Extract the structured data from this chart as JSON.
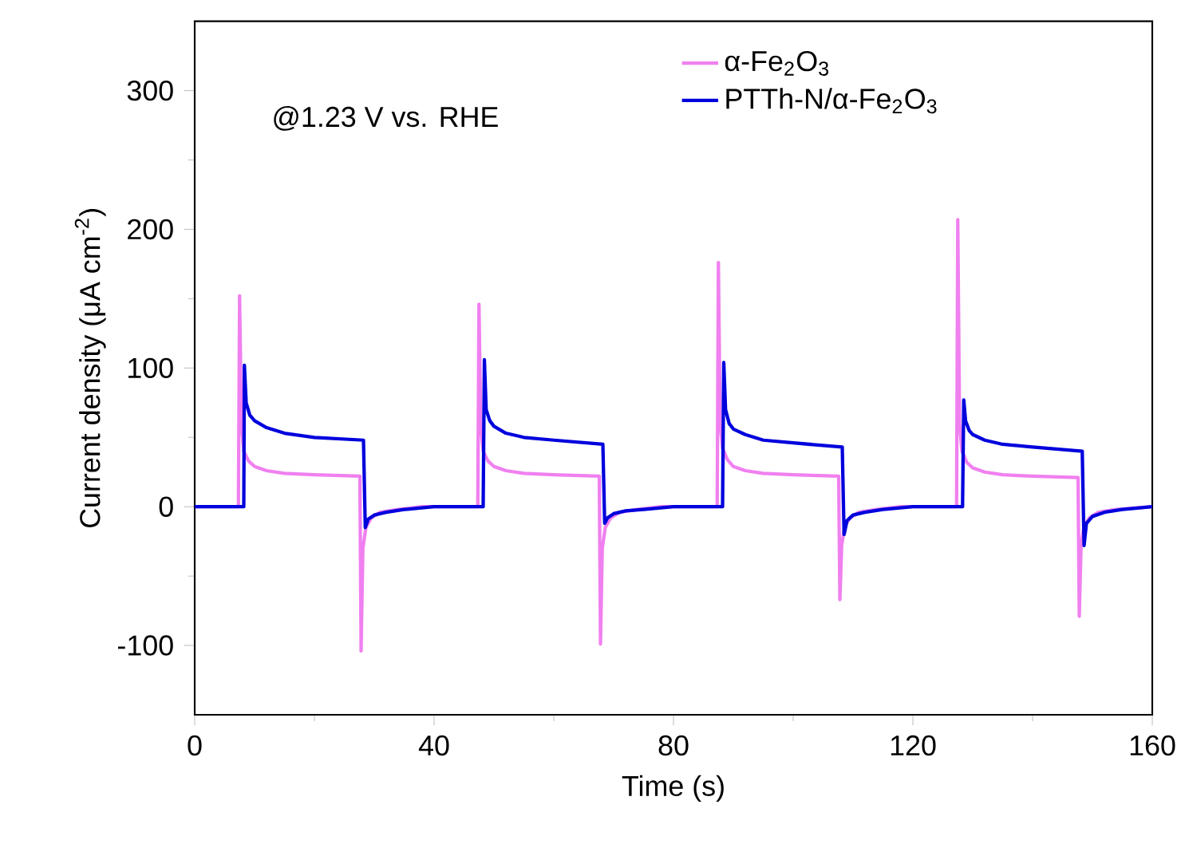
{
  "chart_data": {
    "type": "line",
    "xlabel": "Time (s)",
    "ylabel": "Current density (μA cm$^{-2}$)",
    "annotations": [
      "@1.23 V vs. RHE"
    ],
    "xlim": [
      0,
      160
    ],
    "ylim": [
      -150,
      350
    ],
    "xticks": [
      0,
      40,
      80,
      120,
      160
    ],
    "yticks": [
      -100,
      0,
      100,
      200,
      300
    ],
    "legend": "top right",
    "marker": "none",
    "line_style": "solid",
    "grid": false,
    "series": [
      {
        "name": "α-Fe$_{2}$O$_{3}$",
        "color": "#f080f0",
        "x": [
          0,
          7.3,
          7.5,
          7.8,
          8.2,
          9,
          10,
          12,
          15,
          20,
          27.6,
          27.8,
          28.1,
          28.6,
          29.5,
          31,
          34,
          38,
          47.3,
          47.5,
          47.8,
          48.2,
          49,
          50,
          52,
          55,
          60,
          67.6,
          67.8,
          68.1,
          68.6,
          69.5,
          71,
          74,
          78,
          87.3,
          87.5,
          87.8,
          88.2,
          89,
          90,
          92,
          95,
          100,
          107.6,
          107.8,
          108.1,
          108.6,
          109.5,
          111,
          114,
          118,
          127.3,
          127.5,
          127.8,
          128.2,
          129,
          130,
          132,
          135,
          140,
          147.6,
          147.8,
          148.1,
          148.6,
          149.5,
          151,
          154,
          160
        ],
        "values": [
          0,
          0,
          152,
          60,
          40,
          33,
          29,
          26,
          24,
          23,
          22,
          -104,
          -30,
          -15,
          -8,
          -4,
          -2,
          0,
          0,
          146,
          58,
          40,
          33,
          29,
          26,
          24,
          23,
          22,
          -99,
          -30,
          -15,
          -8,
          -4,
          -2,
          0,
          0,
          176,
          60,
          42,
          34,
          29,
          26,
          24,
          23,
          22,
          -67,
          -28,
          -14,
          -8,
          -4,
          -2,
          0,
          0,
          207,
          60,
          40,
          32,
          28,
          25,
          23,
          22,
          21,
          -79,
          -28,
          -14,
          -8,
          -4,
          -2,
          0
        ]
      },
      {
        "name": "PTTh-N/α-Fe$_{2}$O$_{3}$",
        "color": "#0000dd",
        "x": [
          0,
          8.2,
          8.3,
          8.6,
          9.2,
          10,
          12,
          15,
          20,
          28.2,
          28.5,
          29,
          30,
          32,
          35,
          40,
          48.2,
          48.4,
          48.7,
          49.3,
          50,
          52,
          55,
          60,
          68.2,
          68.5,
          69,
          70,
          72,
          75,
          80,
          88.2,
          88.4,
          88.7,
          89.3,
          90,
          92,
          95,
          100,
          108.2,
          108.5,
          109,
          110,
          112,
          115,
          120,
          128.3,
          128.5,
          128.8,
          129.4,
          130,
          132,
          135,
          140,
          148.3,
          148.6,
          149,
          150,
          152,
          155,
          160
        ],
        "values": [
          0,
          0,
          102,
          75,
          66,
          62,
          57,
          53,
          50,
          48,
          -15,
          -9,
          -6,
          -4,
          -2,
          0,
          0,
          106,
          70,
          62,
          58,
          53,
          50,
          48,
          45,
          -12,
          -8,
          -5,
          -3,
          -2,
          0,
          0,
          104,
          70,
          60,
          56,
          52,
          48,
          46,
          43,
          -20,
          -10,
          -6,
          -4,
          -2,
          0,
          0,
          77,
          62,
          55,
          52,
          48,
          45,
          43,
          40,
          -28,
          -12,
          -7,
          -4,
          -2,
          0
        ]
      }
    ]
  }
}
